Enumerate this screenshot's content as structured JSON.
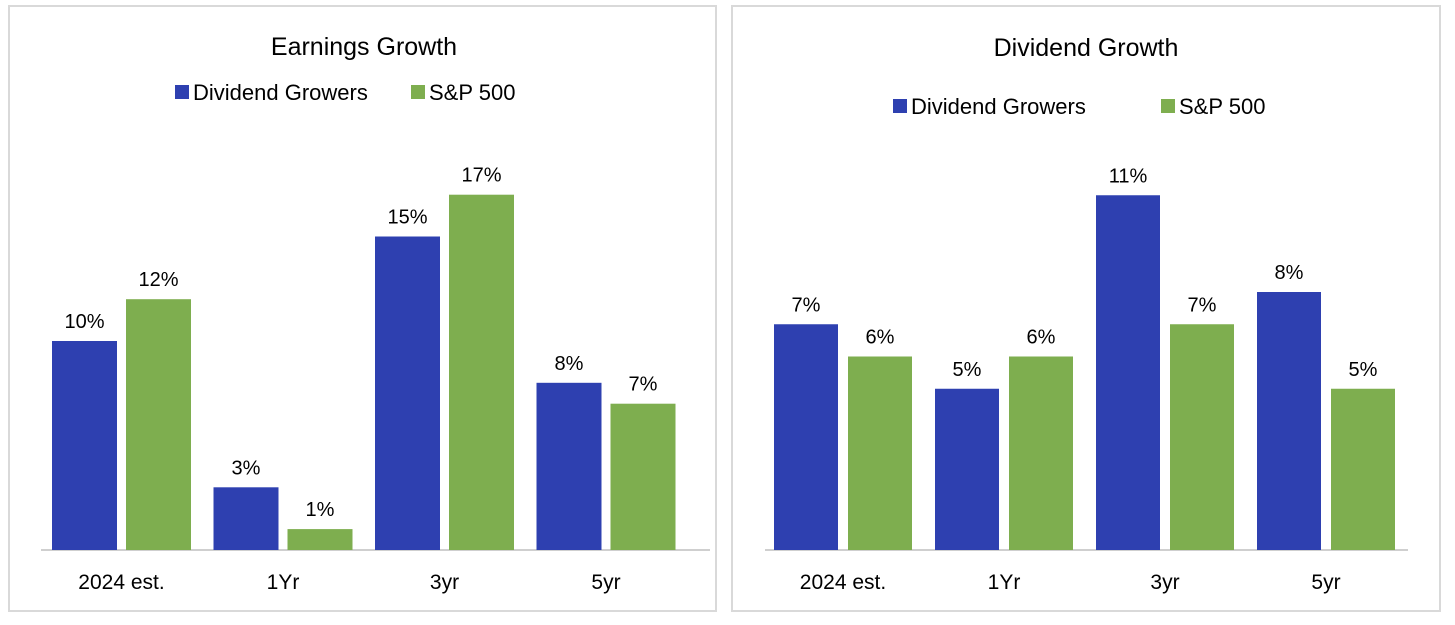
{
  "colors": {
    "dividend_growers": "#2e40b0",
    "sp500": "#7eae4f",
    "axis": "#bfbfbf"
  },
  "chart_data": [
    {
      "type": "bar",
      "title": "Earnings Growth",
      "categories": [
        "2024 est.",
        "1Yr",
        "3yr",
        "5yr"
      ],
      "series": [
        {
          "name": "Dividend Growers",
          "values": [
            10,
            3,
            15,
            8
          ],
          "labels": [
            "10%",
            "3%",
            "15%",
            "8%"
          ]
        },
        {
          "name": "S&P 500",
          "values": [
            12,
            1,
            17,
            7
          ],
          "labels": [
            "12%",
            "1%",
            "17%",
            "7%"
          ]
        }
      ],
      "xlabel": "",
      "ylabel": "",
      "grid": false,
      "legend": "top"
    },
    {
      "type": "bar",
      "title": "Dividend Growth",
      "categories": [
        "2024 est.",
        "1Yr",
        "3yr",
        "5yr"
      ],
      "series": [
        {
          "name": "Dividend Growers",
          "values": [
            7,
            5,
            11,
            8
          ],
          "labels": [
            "7%",
            "5%",
            "11%",
            "8%"
          ]
        },
        {
          "name": "S&P 500",
          "values": [
            6,
            6,
            7,
            5
          ],
          "labels": [
            "6%",
            "6%",
            "7%",
            "5%"
          ]
        }
      ],
      "xlabel": "",
      "ylabel": "",
      "grid": false,
      "legend": "top"
    }
  ]
}
